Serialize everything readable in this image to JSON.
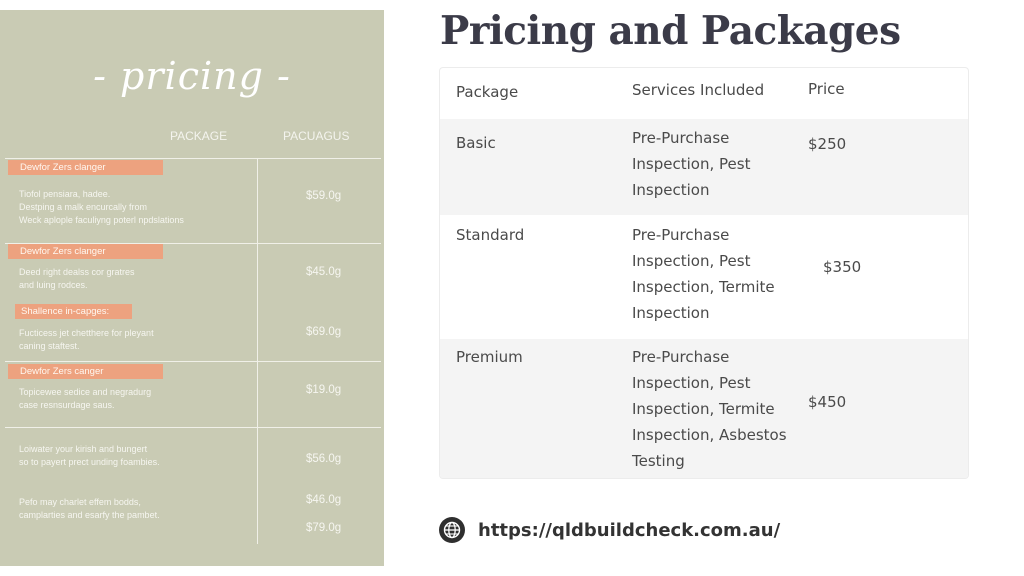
{
  "menu_image": {
    "title": "- pricing -",
    "col_package": "PACKAGE",
    "col_price": "PACUAGUS",
    "tags": [
      "Dewfor Zers clanger",
      "Dewfor Zers clanger",
      "Shallence in-capges:",
      "Dewfor Zers canger"
    ],
    "items": [
      {
        "desc": "Tiofol pensiara, hadee.\nDestping a malk encurcally from\nWeck aplople faculiyng poterl npdslations",
        "price": "$59.0g"
      },
      {
        "desc": "Deed right dealss cor gratres\nand luing rodces.",
        "price": "$45.0g"
      },
      {
        "desc": "Fucticess jet chetthere for pleyant\ncaning staftest.",
        "price": "$69.0g"
      },
      {
        "desc": "Topicewee sedice and negradurg\ncase resnsurdage saus.",
        "price": "$19.0g"
      },
      {
        "desc": "Loiwater your kirish and bungert\nso to payert prect unding foambies.",
        "price": "$56.0g"
      },
      {
        "desc": "Pefo may charlet effem bodds,\ncamplarties and esarfy the pambet.",
        "price": "$46.0g"
      },
      {
        "desc": "",
        "price": "$79.0g"
      }
    ]
  },
  "page": {
    "title": "Pricing and Packages"
  },
  "table": {
    "headers": [
      "Package",
      "Services Included",
      "Price"
    ],
    "rows": [
      {
        "package": "Basic",
        "services": "Pre-Purchase Inspection, Pest Inspection",
        "price": "$250"
      },
      {
        "package": "Standard",
        "services": "Pre-Purchase Inspection, Pest Inspection, Termite Inspection",
        "price": "$350"
      },
      {
        "package": "Premium",
        "services": "Pre-Purchase Inspection, Pest Inspection, Termite Inspection, Asbestos Testing",
        "price": "$450"
      }
    ]
  },
  "footer": {
    "icon": "globe-icon",
    "url": "https://qldbuildcheck.com.au/"
  }
}
